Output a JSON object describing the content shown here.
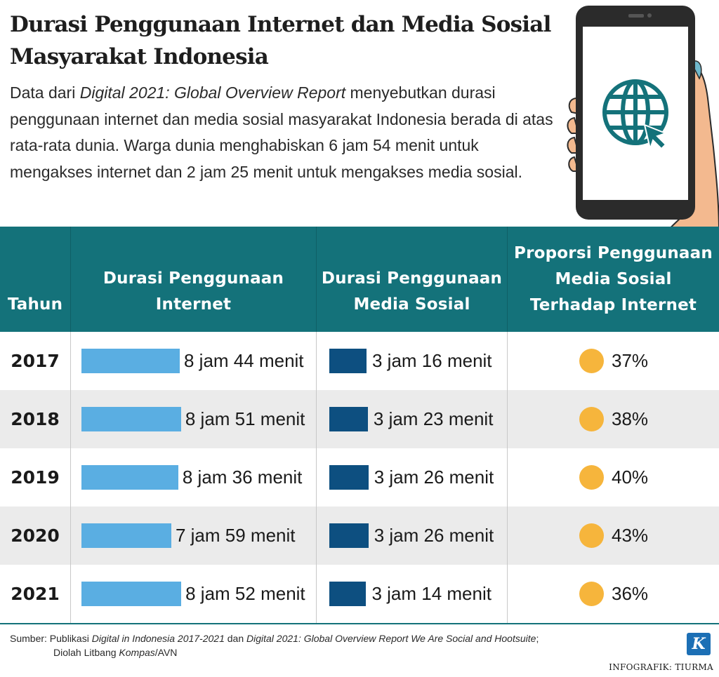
{
  "title_line1": "Durasi Penggunaan Internet dan Media Sosial",
  "title_line2": "Masyarakat Indonesia",
  "intro": {
    "p1": "Data dari ",
    "p2_italic": "Digital 2021: Global Overview Report",
    "p3": " menyebutkan durasi penggunaan internet dan media sosial masyarakat Indonesia berada di atas rata-rata dunia. Warga dunia menghabiskan 6 jam 54 menit untuk mengakses internet dan 2 jam 25 menit untuk mengakses media sosial."
  },
  "headers": {
    "year": "Tahun",
    "internet_l1": "Durasi Penggunaan",
    "internet_l2": "Internet",
    "media_l1": "Durasi Penggunaan",
    "media_l2": "Media Sosial",
    "prop_l1": "Proporsi Penggunaan",
    "prop_l2": "Media Sosial",
    "prop_l3": "Terhadap Internet"
  },
  "colors": {
    "header_bg": "#14727a",
    "internet_bar": "#5aaee2",
    "media_bar": "#0d4f80",
    "proportion_dot": "#f6b53c",
    "row_shade": "#ebebeb"
  },
  "chart_data": {
    "type": "table",
    "rows": [
      {
        "year": "2017",
        "internet": "8 jam 44 menit",
        "internet_minutes": 524,
        "media": "3 jam 16 menit",
        "media_minutes": 196,
        "proportion": "37%"
      },
      {
        "year": "2018",
        "internet": "8 jam 51 menit",
        "internet_minutes": 531,
        "media": "3 jam 23 menit",
        "media_minutes": 203,
        "proportion": "38%"
      },
      {
        "year": "2019",
        "internet": "8 jam 36 menit",
        "internet_minutes": 516,
        "media": "3 jam 26 menit",
        "media_minutes": 206,
        "proportion": "40%"
      },
      {
        "year": "2020",
        "internet": "7 jam 59 menit",
        "internet_minutes": 479,
        "media": "3 jam 26 menit",
        "media_minutes": 206,
        "proportion": "43%"
      },
      {
        "year": "2021",
        "internet": "8 jam 52 menit",
        "internet_minutes": 532,
        "media": "3 jam 14 menit",
        "media_minutes": 194,
        "proportion": "36%"
      }
    ]
  },
  "source": {
    "s1": "Sumber: Publikasi ",
    "s2_italic": "Digital in Indonesia 2017-2021",
    "s3": " dan ",
    "s4_italic": "Digital 2021: Global Overview Report We Are Social and Hootsuite",
    "s5": ";",
    "s6": "Diolah Litbang ",
    "s7_italic": "Kompas",
    "s8": "/AVN"
  },
  "logo_letter": "K",
  "credit": "INFOGRAFIK: TIURMA"
}
